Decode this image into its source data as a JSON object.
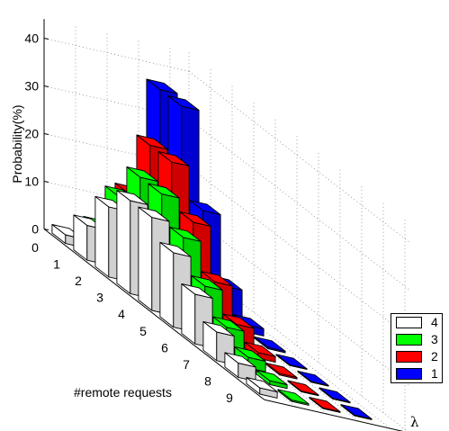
{
  "chart_data": {
    "type": "bar3d",
    "ylabel": "Probability(%)",
    "xlabel": "#remote requests",
    "zlabel": "λ",
    "yticks": [
      0,
      10,
      20,
      30,
      40
    ],
    "ylim": [
      0,
      40
    ],
    "categories": [
      "0",
      "1",
      "2",
      "3",
      "4",
      "5",
      "6",
      "7",
      "8",
      "9"
    ],
    "series": [
      {
        "name": "4",
        "color": "#ffffff",
        "values": [
          1.8,
          7.3,
          14.7,
          19.5,
          19.5,
          15.6,
          10.4,
          6.0,
          3.0,
          1.3
        ]
      },
      {
        "name": "3",
        "color": "#00ff00",
        "values": [
          5.0,
          14.9,
          22.4,
          22.4,
          16.8,
          10.1,
          5.0,
          2.2,
          0.8,
          0.3
        ]
      },
      {
        "name": "2",
        "color": "#ff0000",
        "values": [
          13.5,
          27.1,
          27.1,
          18.0,
          9.0,
          3.6,
          1.2,
          0.3,
          0.1,
          0.0
        ]
      },
      {
        "name": "1",
        "color": "#0000ff",
        "values": [
          36.8,
          36.8,
          18.4,
          6.1,
          1.5,
          0.3,
          0.1,
          0.0,
          0.0,
          0.0
        ]
      }
    ]
  },
  "legend": {
    "entries": [
      {
        "label": "4",
        "color": "#ffffff"
      },
      {
        "label": "3",
        "color": "#00ff00"
      },
      {
        "label": "2",
        "color": "#ff0000"
      },
      {
        "label": "1",
        "color": "#0000ff"
      }
    ]
  }
}
